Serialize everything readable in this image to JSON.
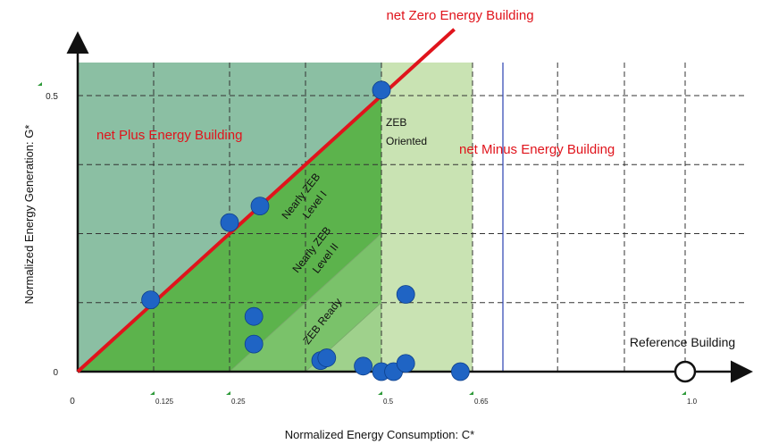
{
  "chart_data": {
    "type": "scatter",
    "xlabel": "Normalized Energy Consumption: C*",
    "ylabel": "Normalized Energy Generation: G*",
    "x_ticks": [
      {
        "value": 0,
        "label": "0"
      },
      {
        "value": 0.125,
        "label": "0.125"
      },
      {
        "value": 0.25,
        "label": "0.25"
      },
      {
        "value": 0.5,
        "label": "0.5"
      },
      {
        "value": 0.65,
        "label": "0.65"
      },
      {
        "value": 1.0,
        "label": "1.0"
      }
    ],
    "y_ticks": [
      {
        "value": 0,
        "label": "0"
      },
      {
        "value": 0.5,
        "label": "0.5"
      }
    ],
    "xlim": [
      0,
      1.1
    ],
    "ylim": [
      0,
      0.62
    ],
    "grid": true,
    "lines": {
      "zero_energy": {
        "label": "net Zero Energy Building",
        "color": "#e0141c"
      },
      "reference_line_x": 0.7
    },
    "zones": [
      {
        "label": "net Plus Energy Building"
      },
      {
        "label": "Nearly ZEB Level I"
      },
      {
        "label": "Nearly ZEB Level II"
      },
      {
        "label": "ZEB Ready"
      },
      {
        "label": "ZEB Oriented"
      },
      {
        "label": "net Minus Energy Building"
      }
    ],
    "reference_point": {
      "x": 1.0,
      "y": 0,
      "label": "Reference Building"
    },
    "points": [
      {
        "x": 0.5,
        "y": 0.51
      },
      {
        "x": 0.25,
        "y": 0.27
      },
      {
        "x": 0.3,
        "y": 0.3
      },
      {
        "x": 0.12,
        "y": 0.13
      },
      {
        "x": 0.29,
        "y": 0.1
      },
      {
        "x": 0.29,
        "y": 0.05
      },
      {
        "x": 0.4,
        "y": 0.02
      },
      {
        "x": 0.41,
        "y": 0.025
      },
      {
        "x": 0.47,
        "y": 0.01
      },
      {
        "x": 0.5,
        "y": 0.0
      },
      {
        "x": 0.52,
        "y": 0.0
      },
      {
        "x": 0.54,
        "y": 0.015
      },
      {
        "x": 0.54,
        "y": 0.14
      },
      {
        "x": 0.63,
        "y": 0.0
      }
    ],
    "colors": {
      "plus_zone": "#8bbfa3",
      "nearly_zeb_1": "#5cb34c",
      "nearly_zeb_2": "#7ac26a",
      "zeb_ready": "#9fd18c",
      "zeb_oriented": "#c9e3b3",
      "marker": "#1f64c4",
      "zero_line": "#e0141c",
      "blue_line": "#2a3fb0"
    }
  }
}
